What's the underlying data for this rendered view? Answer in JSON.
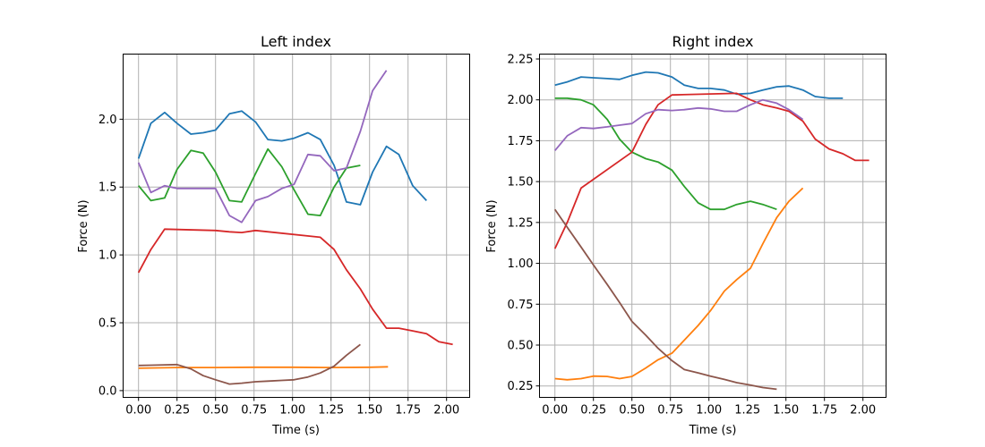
{
  "chart_data": [
    {
      "type": "line",
      "title": "Left index",
      "xlabel": "Time (s)",
      "ylabel": "Force (N)",
      "xlim": [
        -0.1,
        2.15
      ],
      "ylim": [
        -0.05,
        2.48
      ],
      "xticks": [
        0.0,
        0.25,
        0.5,
        0.75,
        1.0,
        1.25,
        1.5,
        1.75,
        2.0
      ],
      "xtick_labels": [
        "0.00",
        "0.25",
        "0.50",
        "0.75",
        "1.00",
        "1.25",
        "1.50",
        "1.75",
        "2.00"
      ],
      "yticks": [
        0.0,
        0.5,
        1.0,
        1.5,
        2.0
      ],
      "ytick_labels": [
        "0.0",
        "0.5",
        "1.0",
        "1.5",
        "2.0"
      ],
      "grid": true,
      "series": [
        {
          "color": "#1f77b4",
          "x": [
            0.0,
            0.08,
            0.17,
            0.25,
            0.34,
            0.42,
            0.5,
            0.59,
            0.67,
            0.76,
            0.84,
            0.93,
            1.01,
            1.1,
            1.18,
            1.27,
            1.35,
            1.44,
            1.52,
            1.61,
            1.69,
            1.78,
            1.87
          ],
          "y": [
            1.71,
            1.97,
            2.05,
            1.97,
            1.89,
            1.9,
            1.92,
            2.04,
            2.06,
            1.98,
            1.85,
            1.84,
            1.86,
            1.9,
            1.85,
            1.66,
            1.39,
            1.37,
            1.61,
            1.8,
            1.74,
            1.51,
            1.4
          ]
        },
        {
          "color": "#ff7f0e",
          "x": [
            0.0,
            0.25,
            0.5,
            0.75,
            1.0,
            1.25,
            1.5,
            1.62
          ],
          "y": [
            0.165,
            0.17,
            0.17,
            0.172,
            0.172,
            0.17,
            0.172,
            0.175
          ]
        },
        {
          "color": "#2ca02c",
          "x": [
            0.0,
            0.08,
            0.17,
            0.25,
            0.34,
            0.42,
            0.5,
            0.59,
            0.67,
            0.76,
            0.84,
            0.93,
            1.01,
            1.1,
            1.18,
            1.27,
            1.35,
            1.44
          ],
          "y": [
            1.51,
            1.4,
            1.42,
            1.63,
            1.77,
            1.75,
            1.61,
            1.4,
            1.39,
            1.6,
            1.78,
            1.65,
            1.48,
            1.3,
            1.29,
            1.5,
            1.64,
            1.66
          ]
        },
        {
          "color": "#d62728",
          "x": [
            0.0,
            0.08,
            0.17,
            0.5,
            0.59,
            0.67,
            0.76,
            1.18,
            1.27,
            1.35,
            1.44,
            1.52,
            1.61,
            1.69,
            1.78,
            1.87,
            1.95,
            2.04
          ],
          "y": [
            0.87,
            1.04,
            1.19,
            1.18,
            1.17,
            1.165,
            1.18,
            1.13,
            1.04,
            0.89,
            0.75,
            0.6,
            0.46,
            0.46,
            0.44,
            0.42,
            0.36,
            0.34
          ]
        },
        {
          "color": "#9467bd",
          "x": [
            0.0,
            0.08,
            0.17,
            0.25,
            0.34,
            0.42,
            0.5,
            0.59,
            0.67,
            0.76,
            0.84,
            0.93,
            1.01,
            1.1,
            1.18,
            1.27,
            1.35,
            1.44,
            1.52,
            1.61
          ],
          "y": [
            1.68,
            1.46,
            1.51,
            1.49,
            1.49,
            1.49,
            1.49,
            1.29,
            1.24,
            1.4,
            1.43,
            1.49,
            1.52,
            1.74,
            1.73,
            1.62,
            1.64,
            1.91,
            2.21,
            2.36
          ]
        },
        {
          "color": "#8c564b",
          "x": [
            0.0,
            0.08,
            0.17,
            0.25,
            0.34,
            0.42,
            0.5,
            0.59,
            0.67,
            0.76,
            0.84,
            0.93,
            1.01,
            1.1,
            1.18,
            1.27,
            1.35,
            1.44
          ],
          "y": [
            0.185,
            0.187,
            0.19,
            0.192,
            0.16,
            0.11,
            0.08,
            0.048,
            0.055,
            0.065,
            0.07,
            0.075,
            0.08,
            0.1,
            0.13,
            0.18,
            0.26,
            0.34
          ]
        }
      ]
    },
    {
      "type": "line",
      "title": "Right index",
      "xlabel": "Time (s)",
      "ylabel": "Force (N)",
      "xlim": [
        -0.1,
        2.15
      ],
      "ylim": [
        0.18,
        2.28
      ],
      "xticks": [
        0.0,
        0.25,
        0.5,
        0.75,
        1.0,
        1.25,
        1.5,
        1.75,
        2.0
      ],
      "xtick_labels": [
        "0.00",
        "0.25",
        "0.50",
        "0.75",
        "1.00",
        "1.25",
        "1.50",
        "1.75",
        "2.00"
      ],
      "yticks": [
        0.25,
        0.5,
        0.75,
        1.0,
        1.25,
        1.5,
        1.75,
        2.0,
        2.25
      ],
      "ytick_labels": [
        "0.25",
        "0.50",
        "0.75",
        "1.00",
        "1.25",
        "1.50",
        "1.75",
        "2.00",
        "2.25"
      ],
      "grid": true,
      "series": [
        {
          "color": "#1f77b4",
          "x": [
            0.0,
            0.08,
            0.17,
            0.25,
            0.34,
            0.42,
            0.5,
            0.59,
            0.67,
            0.76,
            0.84,
            0.93,
            1.01,
            1.1,
            1.18,
            1.27,
            1.35,
            1.44,
            1.52,
            1.61,
            1.69,
            1.78,
            1.87
          ],
          "y": [
            2.09,
            2.11,
            2.14,
            2.135,
            2.13,
            2.125,
            2.15,
            2.17,
            2.165,
            2.14,
            2.09,
            2.07,
            2.07,
            2.06,
            2.035,
            2.04,
            2.06,
            2.08,
            2.085,
            2.06,
            2.02,
            2.01,
            2.01
          ]
        },
        {
          "color": "#ff7f0e",
          "x": [
            0.0,
            0.08,
            0.17,
            0.25,
            0.34,
            0.42,
            0.5,
            0.59,
            0.67,
            0.76,
            0.84,
            0.93,
            1.01,
            1.1,
            1.18,
            1.27,
            1.35,
            1.44,
            1.52,
            1.61
          ],
          "y": [
            0.295,
            0.288,
            0.295,
            0.31,
            0.308,
            0.295,
            0.308,
            0.36,
            0.41,
            0.45,
            0.53,
            0.62,
            0.71,
            0.83,
            0.9,
            0.97,
            1.12,
            1.28,
            1.38,
            1.46
          ]
        },
        {
          "color": "#2ca02c",
          "x": [
            0.0,
            0.08,
            0.17,
            0.25,
            0.34,
            0.42,
            0.5,
            0.59,
            0.67,
            0.76,
            0.84,
            0.93,
            1.01,
            1.1,
            1.18,
            1.27,
            1.35,
            1.44
          ],
          "y": [
            2.01,
            2.01,
            2.0,
            1.97,
            1.88,
            1.76,
            1.68,
            1.64,
            1.62,
            1.57,
            1.47,
            1.37,
            1.33,
            1.33,
            1.36,
            1.38,
            1.36,
            1.33
          ]
        },
        {
          "color": "#d62728",
          "x": [
            0.0,
            0.08,
            0.17,
            0.5,
            0.59,
            0.67,
            0.76,
            1.18,
            1.27,
            1.35,
            1.44,
            1.52,
            1.61,
            1.69,
            1.78,
            1.87,
            1.95,
            2.04
          ],
          "y": [
            1.09,
            1.25,
            1.46,
            1.68,
            1.85,
            1.97,
            2.03,
            2.04,
            2.0,
            1.97,
            1.95,
            1.93,
            1.87,
            1.76,
            1.7,
            1.67,
            1.63,
            1.63
          ]
        },
        {
          "color": "#9467bd",
          "x": [
            0.0,
            0.08,
            0.17,
            0.25,
            0.34,
            0.42,
            0.5,
            0.59,
            0.67,
            0.76,
            0.84,
            0.93,
            1.01,
            1.1,
            1.18,
            1.27,
            1.35,
            1.44,
            1.52,
            1.61
          ],
          "y": [
            1.69,
            1.78,
            1.83,
            1.825,
            1.835,
            1.845,
            1.855,
            1.915,
            1.94,
            1.935,
            1.94,
            1.95,
            1.945,
            1.93,
            1.93,
            1.97,
            2.0,
            1.98,
            1.94,
            1.88
          ]
        },
        {
          "color": "#8c564b",
          "x": [
            0.0,
            0.08,
            0.17,
            0.25,
            0.34,
            0.42,
            0.5,
            0.59,
            0.67,
            0.76,
            0.84,
            0.93,
            1.01,
            1.1,
            1.18,
            1.27,
            1.35,
            1.44
          ],
          "y": [
            1.33,
            1.22,
            1.1,
            0.99,
            0.87,
            0.76,
            0.645,
            0.56,
            0.48,
            0.405,
            0.35,
            0.33,
            0.31,
            0.29,
            0.27,
            0.255,
            0.24,
            0.23
          ]
        }
      ]
    }
  ]
}
